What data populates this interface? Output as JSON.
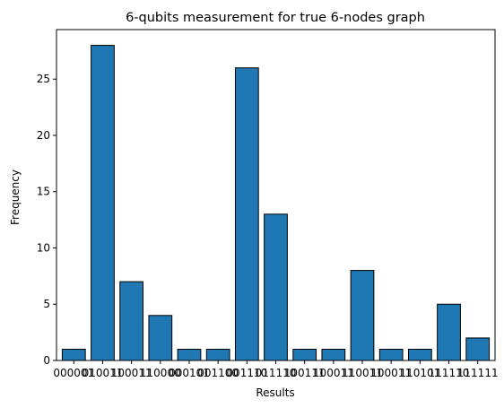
{
  "chart_data": {
    "type": "bar",
    "title": "6-qubits measurement for true 6-nodes graph",
    "xlabel": "Results",
    "ylabel": "Frequency",
    "categories": [
      "000001",
      "010011",
      "100011",
      "110000",
      "000101",
      "001100",
      "001110",
      "011110",
      "100111",
      "100011",
      "110011",
      "100011",
      "110101",
      "111110",
      "111111"
    ],
    "values": [
      1,
      28,
      7,
      4,
      1,
      1,
      26,
      13,
      1,
      1,
      8,
      1,
      1,
      5,
      2
    ],
    "ylim": [
      0,
      29.4
    ],
    "yticks": [
      0,
      5,
      10,
      15,
      20,
      25
    ],
    "bar_color": "#1f77b4",
    "edge_color": "#000000",
    "grid": false
  }
}
